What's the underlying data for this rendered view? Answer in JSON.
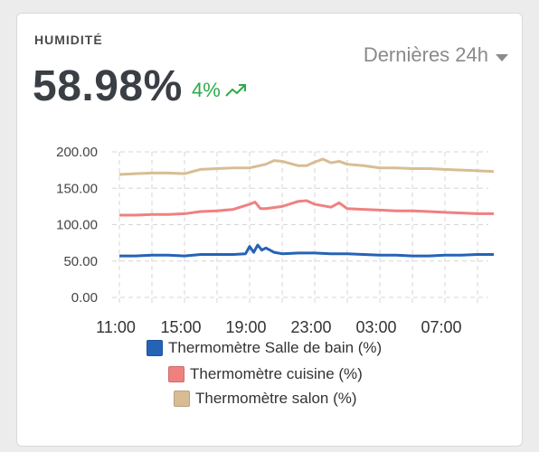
{
  "card": {
    "title": "HUMIDITÉ",
    "value": "58.98%",
    "delta": "4%",
    "delta_color": "#2eaa4a",
    "delta_icon": "trending-up-icon",
    "period": "Dernières 24h",
    "period_icon": "caret-down-icon"
  },
  "chart_data": {
    "type": "line",
    "x_ticks": [
      "11:00",
      "15:00",
      "19:00",
      "23:00",
      "03:00",
      "07:00"
    ],
    "y_ticks": [
      "0.00",
      "50.00",
      "100.00",
      "150.00",
      "200.00"
    ],
    "ylim": [
      0,
      200
    ],
    "grid": true,
    "legend_position": "bottom",
    "series": [
      {
        "name": "Thermomètre Salle de bain (%)",
        "color": "#2563b5",
        "x": [
          "11:00",
          "12:00",
          "13:00",
          "14:00",
          "15:00",
          "16:00",
          "17:00",
          "18:00",
          "18:45",
          "19:00",
          "19:15",
          "19:30",
          "19:45",
          "20:00",
          "20:30",
          "21:00",
          "22:00",
          "23:00",
          "00:00",
          "01:00",
          "02:00",
          "03:00",
          "04:00",
          "05:00",
          "06:00",
          "07:00",
          "08:00",
          "09:00",
          "10:00"
        ],
        "values": [
          57,
          57,
          58,
          58,
          57,
          59,
          59,
          59,
          60,
          70,
          62,
          72,
          65,
          68,
          62,
          60,
          61,
          61,
          60,
          60,
          59,
          58,
          58,
          57,
          57,
          58,
          58,
          59,
          59
        ]
      },
      {
        "name": "Thermomètre cuisine (%)",
        "color": "#f08080",
        "x": [
          "11:00",
          "12:00",
          "13:00",
          "14:00",
          "15:00",
          "16:00",
          "17:00",
          "18:00",
          "19:00",
          "19:20",
          "19:40",
          "20:00",
          "21:00",
          "22:00",
          "22:30",
          "23:00",
          "00:00",
          "00:30",
          "01:00",
          "02:00",
          "03:00",
          "04:00",
          "05:00",
          "06:00",
          "07:00",
          "08:00",
          "09:00",
          "10:00"
        ],
        "values": [
          113,
          113,
          114,
          114,
          115,
          118,
          119,
          121,
          128,
          131,
          122,
          122,
          125,
          132,
          133,
          128,
          124,
          130,
          122,
          121,
          120,
          119,
          119,
          118,
          117,
          116,
          115,
          115
        ]
      },
      {
        "name": "Thermomètre salon (%)",
        "color": "#d8bd94",
        "x": [
          "11:00",
          "12:00",
          "13:00",
          "14:00",
          "15:00",
          "16:00",
          "17:00",
          "18:00",
          "19:00",
          "20:00",
          "20:30",
          "21:00",
          "22:00",
          "22:30",
          "23:00",
          "23:30",
          "00:00",
          "00:30",
          "01:00",
          "02:00",
          "03:00",
          "04:00",
          "05:00",
          "06:00",
          "07:00",
          "08:00",
          "09:00",
          "10:00"
        ],
        "values": [
          169,
          170,
          171,
          171,
          170,
          176,
          177,
          178,
          178,
          183,
          188,
          187,
          181,
          181,
          186,
          190,
          185,
          187,
          183,
          181,
          178,
          178,
          177,
          177,
          176,
          175,
          174,
          173
        ]
      }
    ]
  }
}
